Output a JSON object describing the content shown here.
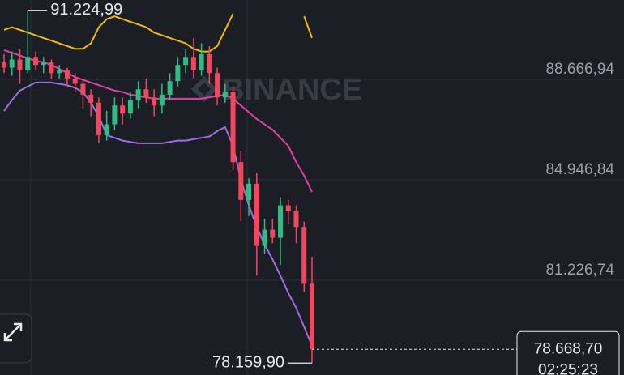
{
  "chart_data": {
    "type": "candlestick",
    "ohlc": {
      "up_color": "#2ebd85",
      "down_color": "#f6465d",
      "open": [
        89300,
        89100,
        89400,
        89000,
        89500,
        89200,
        89300,
        88900,
        89000,
        88700,
        88500,
        88100,
        87800,
        86600,
        87000,
        87700,
        87400,
        87900,
        88300,
        88000,
        87700,
        88100,
        88600,
        89200,
        89500,
        89000,
        89600,
        88900,
        88000,
        88200,
        85600,
        84200,
        84800,
        82500,
        83100,
        82800,
        84000,
        83800,
        83200,
        81100
      ],
      "high": [
        89600,
        89700,
        89800,
        91224.99,
        89700,
        89500,
        89400,
        89200,
        89100,
        88900,
        88700,
        88300,
        88000,
        87500,
        88000,
        88000,
        88200,
        88600,
        88700,
        88300,
        88500,
        88900,
        89500,
        89800,
        90200,
        90000,
        89900,
        89100,
        88500,
        88400,
        86000,
        85000,
        85200,
        83500,
        83500,
        84300,
        84200,
        84000,
        83400,
        82100
      ],
      "low": [
        88900,
        88800,
        88500,
        88900,
        89000,
        88900,
        88700,
        88700,
        88400,
        88200,
        87600,
        87300,
        86300,
        86400,
        86800,
        87000,
        87200,
        87600,
        87800,
        87300,
        87400,
        87900,
        88400,
        88900,
        88700,
        88800,
        88500,
        87700,
        87800,
        85300,
        83400,
        83600,
        81400,
        82200,
        82600,
        81800,
        83300,
        82600,
        80800,
        78159.9
      ],
      "close": [
        89100,
        89400,
        89000,
        89500,
        89200,
        89300,
        88900,
        89000,
        88700,
        88500,
        88100,
        87800,
        86600,
        87000,
        87700,
        87400,
        87900,
        88300,
        88000,
        87700,
        88100,
        88600,
        89200,
        89500,
        89000,
        89600,
        88900,
        88000,
        88200,
        85600,
        84200,
        84800,
        82500,
        83100,
        82800,
        84000,
        83800,
        83200,
        81100,
        78668.7
      ]
    },
    "lines": [
      {
        "color": "#f0b90b",
        "values": [
          90500,
          90600,
          90500,
          90400,
          90300,
          90200,
          90100,
          90000,
          89900,
          89800,
          89800,
          90000,
          90600,
          90900,
          91000,
          90900,
          90800,
          90700,
          90600,
          90400,
          90300,
          90200,
          90100,
          90000,
          89800,
          89700,
          89700,
          89900,
          90500,
          91100,
          null,
          null,
          null,
          null,
          null,
          null,
          null,
          null,
          91000,
          90200
        ]
      },
      {
        "color": "#e040a0",
        "values": [
          89750,
          89650,
          89550,
          89450,
          89350,
          89300,
          89200,
          89050,
          88900,
          88750,
          88650,
          88550,
          88450,
          88350,
          88250,
          88200,
          88100,
          88050,
          88000,
          87950,
          87950,
          87950,
          87950,
          87950,
          87950,
          87950,
          88000,
          88050,
          88100,
          87950,
          87700,
          87450,
          87200,
          87000,
          86800,
          86500,
          86200,
          85600,
          85100,
          84500
        ]
      },
      {
        "color": "#9b6fe0",
        "values": [
          87500,
          87900,
          88250,
          88400,
          88550,
          88550,
          88550,
          88500,
          88450,
          88350,
          88200,
          87800,
          87300,
          86600,
          86500,
          86400,
          86350,
          86300,
          86300,
          86300,
          86300,
          86350,
          86400,
          86400,
          86450,
          86500,
          86550,
          86750,
          86900,
          86200,
          84950,
          84000,
          83200,
          82550,
          82000,
          81400,
          80750,
          80200,
          79500,
          78800
        ]
      }
    ],
    "ylim": [
      77716.94,
      91606.94
    ],
    "yticks": [
      {
        "value": 88666.94,
        "label": "88.666,94"
      },
      {
        "value": 84946.84,
        "label": "84.946,84"
      },
      {
        "value": 81226.74,
        "label": "81.226,74"
      }
    ],
    "grid": true,
    "high_marker": {
      "value": 91224.99,
      "label": "91.224,99"
    },
    "low_marker": {
      "value": 78159.9,
      "label": "78.159,90"
    },
    "last_price": {
      "value": 78668.7,
      "label": "78.668,70"
    },
    "countdown": "02:25:23",
    "watermark": "BINANCE"
  }
}
